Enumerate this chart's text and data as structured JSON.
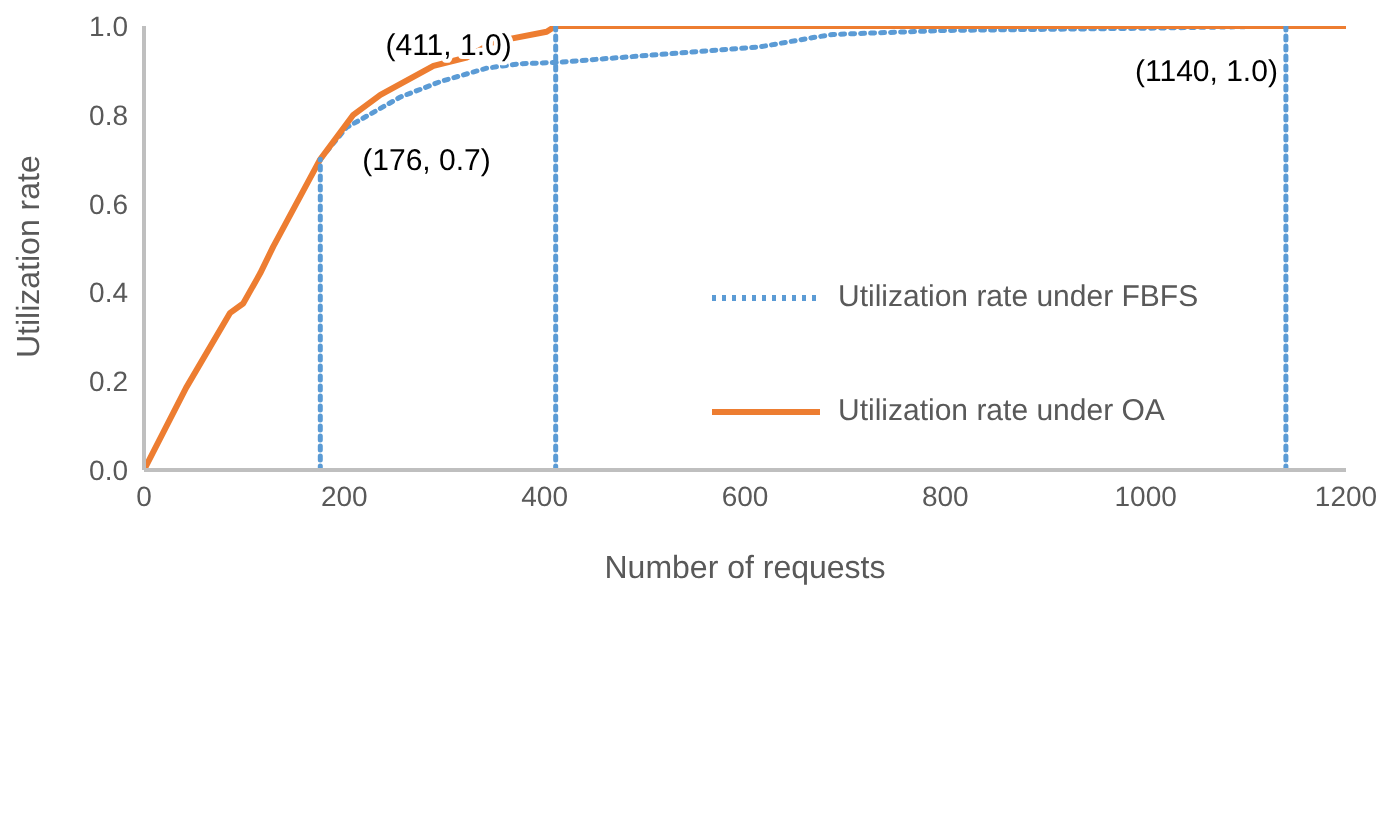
{
  "chart_data": {
    "type": "line",
    "xlabel": "Number of requests",
    "ylabel": "Utilization rate",
    "xlim": [
      0,
      1200
    ],
    "xticks": [
      0,
      200,
      400,
      600,
      800,
      1000,
      1200
    ],
    "ylim": [
      0,
      1
    ],
    "yticks": [
      {
        "value": 0,
        "label": "0.0"
      },
      {
        "value": 0.2,
        "label": "0.2"
      },
      {
        "value": 0.4,
        "label": "0.4"
      },
      {
        "value": 0.6,
        "label": "0.6"
      },
      {
        "value": 0.8,
        "label": "0.8"
      },
      {
        "value": 1,
        "label": "1.0"
      }
    ],
    "grid": false,
    "legend": "right",
    "marker": "none",
    "series": [
      {
        "name": "Utilization rate under FBFS",
        "color": "#5b9bd5",
        "line_style": "dotted",
        "x": [
          176,
          202,
          256,
          296,
          342,
          375,
          412,
          562,
          615,
          668,
          688,
          800,
          1000,
          1140
        ],
        "values": [
          0.7,
          0.771,
          0.84,
          0.875,
          0.905,
          0.915,
          0.918,
          0.944,
          0.953,
          0.974,
          0.981,
          0.99,
          0.995,
          1.0
        ]
      },
      {
        "name": "Utilization rate under OA",
        "color": "#ed7d31",
        "line_style": "solid",
        "x": [
          0,
          42,
          86,
          99,
          116,
          129,
          176,
          209,
          236,
          289,
          322,
          349,
          402,
          411,
          1200
        ],
        "values": [
          0,
          0.185,
          0.354,
          0.375,
          0.443,
          0.503,
          0.7,
          0.8,
          0.845,
          0.91,
          0.929,
          0.964,
          0.987,
          1.0,
          1.0
        ]
      },
      {
        "color": "#5b9bd5",
        "line_style": "dotted",
        "x": [
          176,
          176
        ],
        "values": [
          0,
          0.7
        ]
      },
      {
        "color": "#5b9bd5",
        "line_style": "dotted",
        "x": [
          411,
          411
        ],
        "values": [
          0,
          1.0
        ]
      },
      {
        "color": "#5b9bd5",
        "line_style": "dotted",
        "x": [
          1140,
          1140
        ],
        "values": [
          0,
          1.0
        ]
      }
    ],
    "annotations": [
      {
        "text": "(411, 1.0)",
        "x": 411,
        "y": 1.0
      },
      {
        "text": "(176, 0.7)",
        "x": 176,
        "y": 0.7
      },
      {
        "text": "(1140, 1.0)",
        "x": 1140,
        "y": 1.0
      }
    ]
  }
}
